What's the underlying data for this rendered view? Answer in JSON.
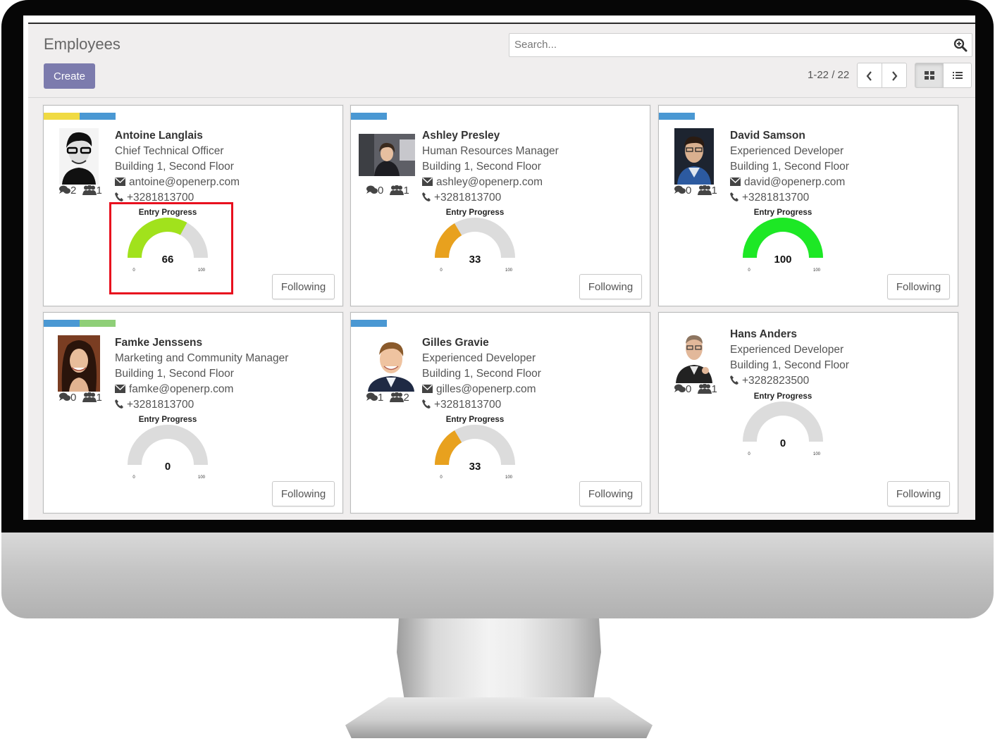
{
  "app": {
    "title": "Employees",
    "create_label": "Create",
    "search_placeholder": "Search...",
    "pager": "1-22 / 22"
  },
  "employees": [
    {
      "name": "Antoine Langlais",
      "job": "Chief Technical Officer",
      "location": "Building 1, Second Floor",
      "email": "antoine@openerp.com",
      "phone": "+3281813700",
      "messages": "2",
      "followers": "1",
      "progress_label": "Entry Progress",
      "progress": 66,
      "gauge_min": "0",
      "gauge_max": "100",
      "gauge_color": "#a1e21c",
      "tags": [
        "#f0da42",
        "#4a98d3"
      ],
      "follow_label": "Following"
    },
    {
      "name": "Ashley Presley",
      "job": "Human Resources Manager",
      "location": "Building 1, Second Floor",
      "email": "ashley@openerp.com",
      "phone": "+3281813700",
      "messages": "0",
      "followers": "1",
      "progress_label": "Entry Progress",
      "progress": 33,
      "gauge_min": "0",
      "gauge_max": "100",
      "gauge_color": "#e8a11e",
      "tags": [
        "#4a98d3"
      ],
      "follow_label": "Following"
    },
    {
      "name": "David Samson",
      "job": "Experienced Developer",
      "location": "Building 1, Second Floor",
      "email": "david@openerp.com",
      "phone": "+3281813700",
      "messages": "0",
      "followers": "1",
      "progress_label": "Entry Progress",
      "progress": 100,
      "gauge_min": "0",
      "gauge_max": "100",
      "gauge_color": "#1de825",
      "tags": [
        "#4a98d3"
      ],
      "follow_label": "Following"
    },
    {
      "name": "Famke Jenssens",
      "job": "Marketing and Community Manager",
      "location": "Building 1, Second Floor",
      "email": "famke@openerp.com",
      "phone": "+3281813700",
      "messages": "0",
      "followers": "1",
      "progress_label": "Entry Progress",
      "progress": 0,
      "gauge_min": "0",
      "gauge_max": "100",
      "gauge_color": "#dddddd",
      "tags": [
        "#4a98d3",
        "#8fcf78"
      ],
      "follow_label": "Following"
    },
    {
      "name": "Gilles Gravie",
      "job": "Experienced Developer",
      "location": "Building 1, Second Floor",
      "email": "gilles@openerp.com",
      "phone": "+3281813700",
      "messages": "1",
      "followers": "2",
      "progress_label": "Entry Progress",
      "progress": 33,
      "gauge_min": "0",
      "gauge_max": "100",
      "gauge_color": "#e8a11e",
      "tags": [
        "#4a98d3"
      ],
      "follow_label": "Following"
    },
    {
      "name": "Hans Anders",
      "job": "Experienced Developer",
      "location": "Building 1, Second Floor",
      "email": "",
      "phone": "+3282823500",
      "messages": "0",
      "followers": "1",
      "progress_label": "Entry Progress",
      "progress": 0,
      "gauge_min": "0",
      "gauge_max": "100",
      "gauge_color": "#dddddd",
      "tags": [],
      "follow_label": "Following"
    }
  ]
}
